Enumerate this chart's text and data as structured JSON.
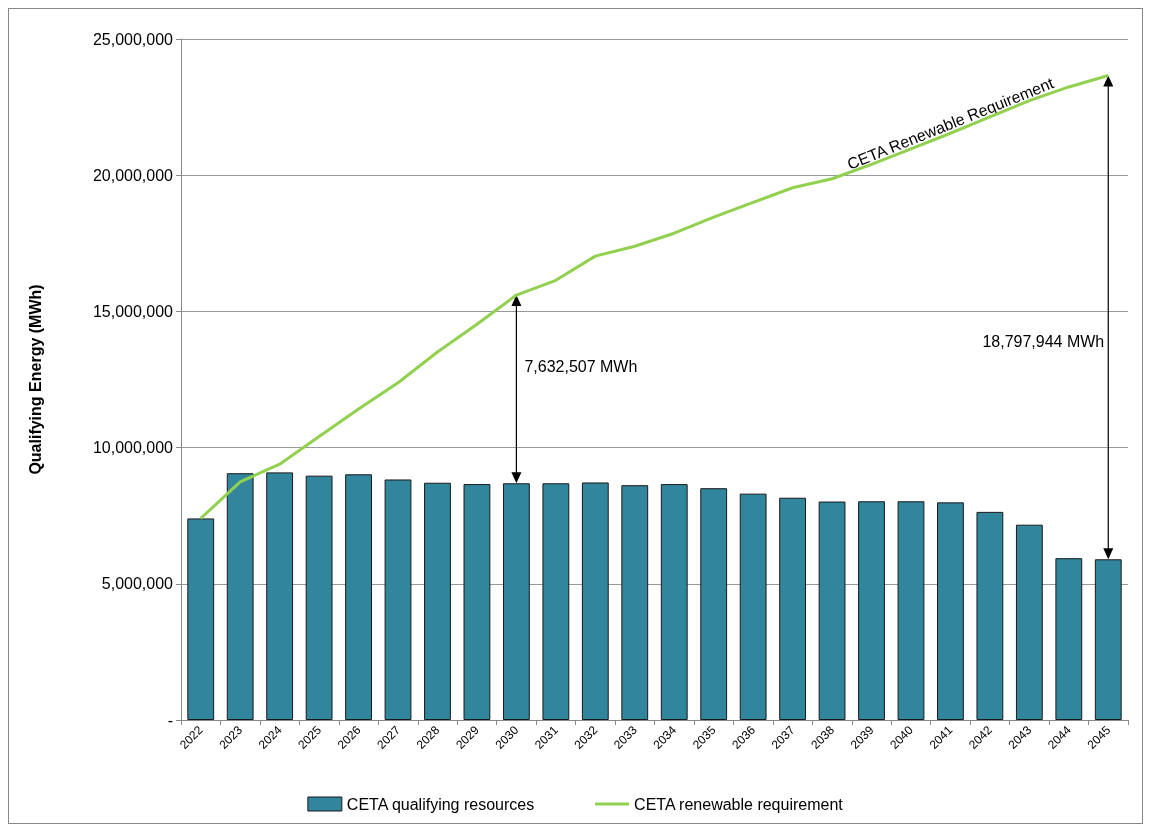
{
  "chart_data": {
    "type": "bar",
    "ylabel": "Qualifying Energy (MWh)",
    "categories": [
      "2022",
      "2023",
      "2024",
      "2025",
      "2026",
      "2027",
      "2028",
      "2029",
      "2030",
      "2031",
      "2032",
      "2033",
      "2034",
      "2035",
      "2036",
      "2037",
      "2038",
      "2039",
      "2040",
      "2041",
      "2042",
      "2043",
      "2044",
      "2045"
    ],
    "series": [
      {
        "name": "CETA qualifying resources",
        "color": "#31859c",
        "values": [
          7400000,
          9060000,
          9090000,
          8970000,
          9020000,
          8830000,
          8710000,
          8660000,
          8690000,
          8690000,
          8720000,
          8620000,
          8660000,
          8510000,
          8310000,
          8160000,
          8020000,
          8030000,
          8030000,
          7990000,
          7640000,
          7170000,
          5940000,
          5900000
        ]
      },
      {
        "name": "CETA renewable requirement",
        "type": "line",
        "color": "#92d050",
        "values": [
          7400000,
          8740000,
          9390000,
          10410000,
          11420000,
          12380000,
          13510000,
          14530000,
          15600000,
          16140000,
          17030000,
          17390000,
          17870000,
          18460000,
          19000000,
          19540000,
          19870000,
          20400000,
          20970000,
          21540000,
          22140000,
          22740000,
          23240000,
          23660000
        ]
      }
    ],
    "ylim": [
      0,
      25000000
    ],
    "yticks": [
      {
        "value": 0,
        "label": "-"
      },
      {
        "value": 5000000,
        "label": "5,000,000"
      },
      {
        "value": 10000000,
        "label": "10,000,000"
      },
      {
        "value": 15000000,
        "label": "15,000,000"
      },
      {
        "value": 20000000,
        "label": "20,000,000"
      },
      {
        "value": 25000000,
        "label": "25,000,000"
      }
    ],
    "grid": "y",
    "legend": "bottom",
    "marker": "none",
    "annotations": [
      "7,632,507 MWh",
      "18,797,944 MWh",
      "CETA Renewable Requirement"
    ]
  }
}
